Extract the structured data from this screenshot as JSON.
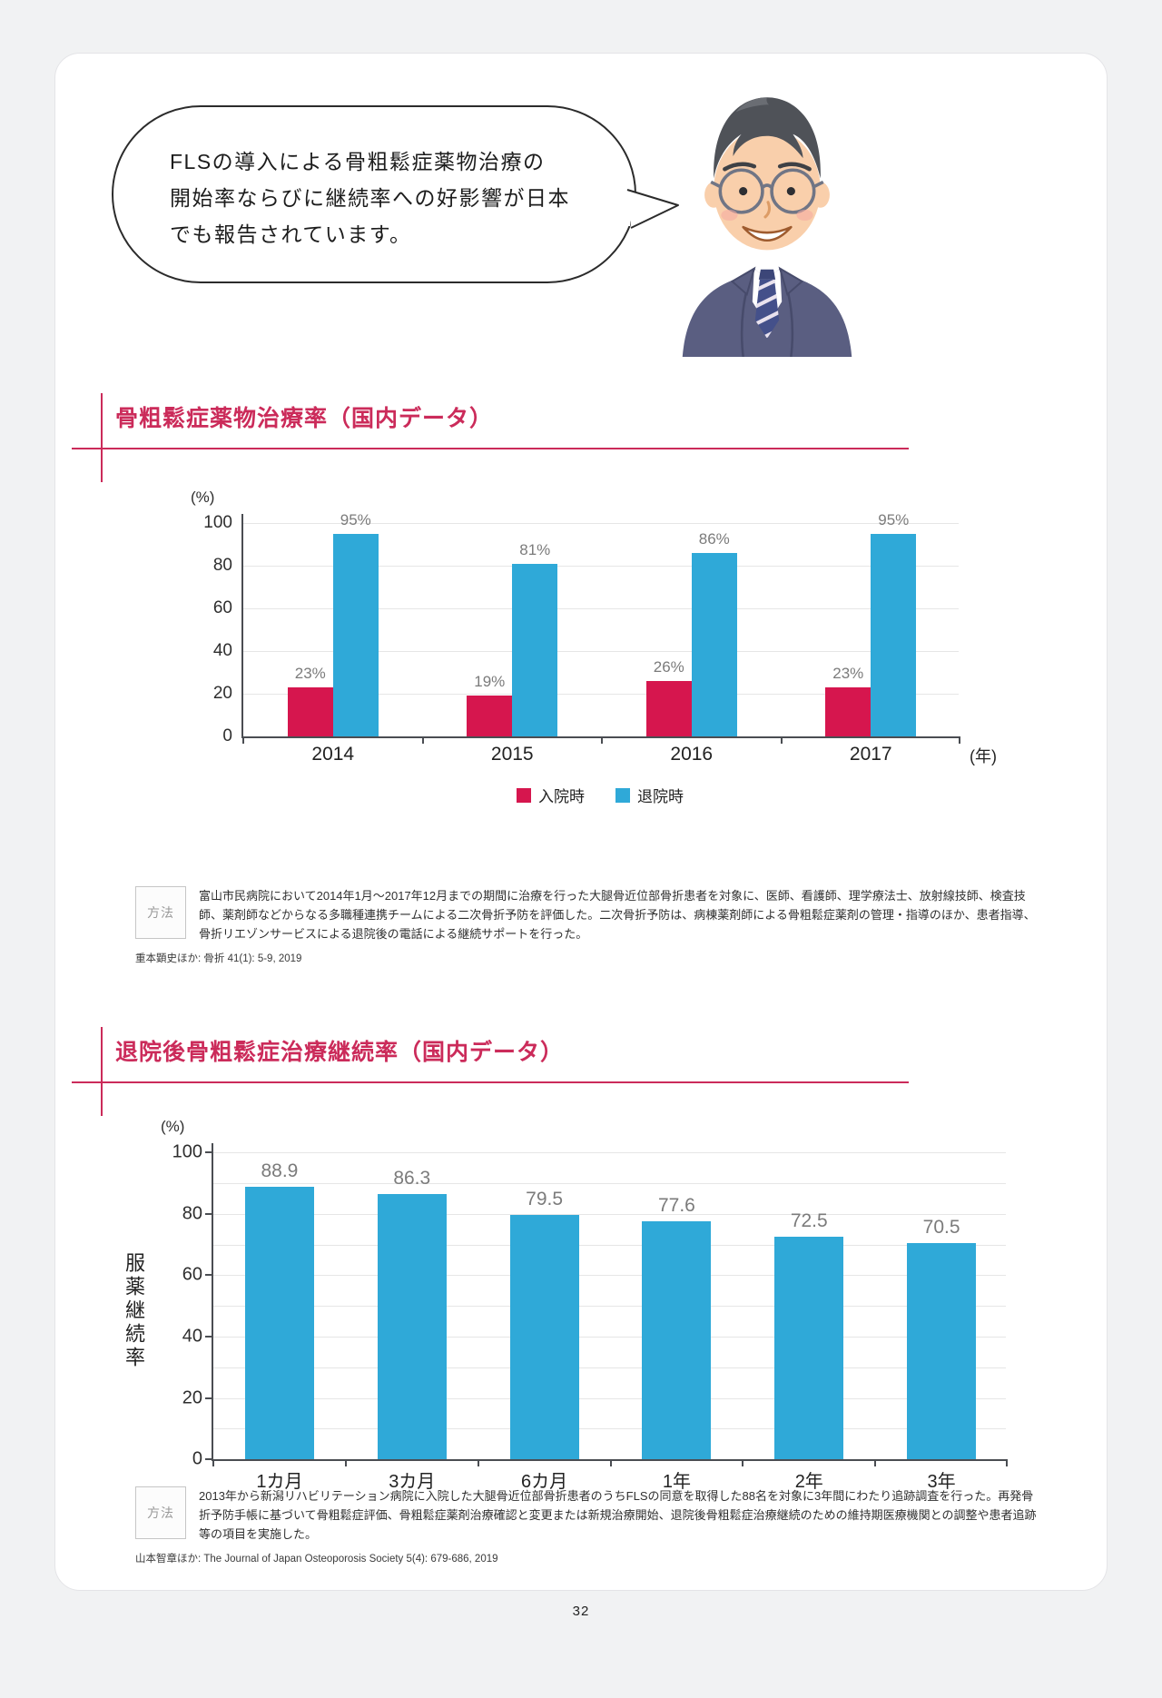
{
  "page": {
    "number": "32",
    "background": "#f1f2f3",
    "card_background": "#ffffff"
  },
  "colors": {
    "accent_red": "#cb2b5a",
    "bar_red": "#d6164e",
    "bar_blue": "#2fa9d8"
  },
  "speech_bubble": {
    "lines": [
      "FLSの導入による骨粗鬆症薬物治療の",
      "開始率ならびに継続率への好影響が日本",
      "でも報告されています。"
    ]
  },
  "sections": [
    {
      "title": "骨粗鬆症薬物治療率（国内データ）",
      "method_label": "方法",
      "method_text": "富山市民病院において2014年1月～2017年12月までの期間に治療を行った大腿骨近位部骨折患者を対象に、医師、看護師、理学療法士、放射線技師、検査技師、薬剤師などからなる多職種連携チームによる二次骨折予防を評価した。二次骨折予防は、病棟薬剤師による骨粗鬆症薬剤の管理・指導のほか、患者指導、骨折リエゾンサービスによる退院後の電話による継続サポートを行った。",
      "citation": "重本顕史ほか: 骨折 41(1): 5-9, 2019"
    },
    {
      "title": "退院後骨粗鬆症治療継続率（国内データ）",
      "method_label": "方法",
      "method_text": "2013年から新潟リハビリテーション病院に入院した大腿骨近位部骨折患者のうちFLSの同意を取得した88名を対象に3年間にわたり追跡調査を行った。再発骨折予防手帳に基づいて骨粗鬆症評価、骨粗鬆症薬剤治療確認と変更または新規治療開始、退院後骨粗鬆症治療継続のための維持期医療機関との調整や患者追跡等の項目を実施した。",
      "citation": "山本智章ほか: The Journal of Japan Osteoporosis Society 5(4): 679-686, 2019"
    }
  ],
  "chart_data": [
    {
      "type": "bar",
      "title": "骨粗鬆症薬物治療率（国内データ）",
      "unit_label": "(%)",
      "x_unit_label": "(年)",
      "categories": [
        "2014",
        "2015",
        "2016",
        "2017"
      ],
      "series": [
        {
          "name": "入院時",
          "color": "#d6164e",
          "values": [
            23,
            19,
            26,
            23
          ]
        },
        {
          "name": "退院時",
          "color": "#2fa9d8",
          "values": [
            95,
            81,
            86,
            95
          ]
        }
      ],
      "value_suffix": "%",
      "ylim": [
        0,
        100
      ],
      "yticks": [
        0,
        20,
        40,
        60,
        80,
        100
      ],
      "gridlines": [
        20,
        40,
        60,
        80,
        100
      ],
      "grid": true,
      "legend_position": "bottom"
    },
    {
      "type": "bar",
      "title": "退院後骨粗鬆症治療継続率（国内データ）",
      "unit_label": "(%)",
      "ylabel": "服薬継続率",
      "categories": [
        "1カ月",
        "3カ月",
        "6カ月",
        "1年",
        "2年",
        "3年"
      ],
      "series": [
        {
          "name": "服薬継続率",
          "color": "#2fa9d8",
          "values": [
            88.9,
            86.3,
            79.5,
            77.6,
            72.5,
            70.5
          ]
        }
      ],
      "value_suffix": "",
      "ylim": [
        0,
        100
      ],
      "yticks": [
        0,
        20,
        40,
        60,
        80,
        100
      ],
      "gridlines": [
        10,
        20,
        30,
        40,
        50,
        60,
        70,
        80,
        90,
        100
      ],
      "left_ticks": true,
      "grid": true,
      "legend_position": "none"
    }
  ]
}
